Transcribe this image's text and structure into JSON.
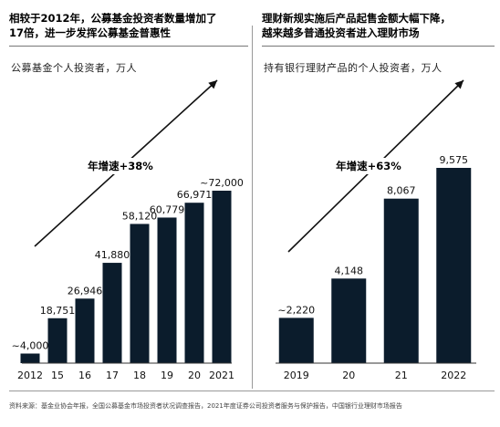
{
  "left_panel": {
    "title": "相较于2012年，公募基金投资者数量增加了\n17倍，进一步发挥公募基金普惠性",
    "subtitle": "公募基金个人投资者，万人"
  },
  "right_panel": {
    "title": "理财新规实施后产品起售金额大幅下降，\n越来越多普通投资者进入理财市场",
    "subtitle": "持有银行理财产品的个人投资者，万人"
  },
  "source_note": "资料来源：基金业协会年报，全国公募基金市场投资者状况调查报告，2021年度证券公司投资者服务与保护报告，中国银行业理财市场报告",
  "colors": {
    "bar": "#0b1c2c",
    "text": "#111111",
    "rule": "#777777"
  },
  "chart_data": [
    {
      "type": "bar",
      "categories": [
        "2012",
        "15",
        "16",
        "17",
        "18",
        "19",
        "20",
        "2021"
      ],
      "values": [
        4000,
        18751,
        26946,
        41880,
        58120,
        60779,
        66971,
        72000
      ],
      "labels": [
        "~4,000",
        "18,751",
        "26,946",
        "41,880",
        "58,120",
        "60,779",
        "66,971",
        "~72,000"
      ],
      "annotation": "年增速+38%",
      "ylim": [
        0,
        72000
      ],
      "title": "",
      "xlabel": "",
      "ylabel": ""
    },
    {
      "type": "bar",
      "categories": [
        "2019",
        "20",
        "21",
        "2022"
      ],
      "values": [
        2220,
        4148,
        8067,
        9575
      ],
      "labels": [
        "~2,220",
        "4,148",
        "8,067",
        "9,575"
      ],
      "annotation": "年增速+63%",
      "ylim": [
        0,
        9575
      ],
      "title": "",
      "xlabel": "",
      "ylabel": ""
    }
  ]
}
